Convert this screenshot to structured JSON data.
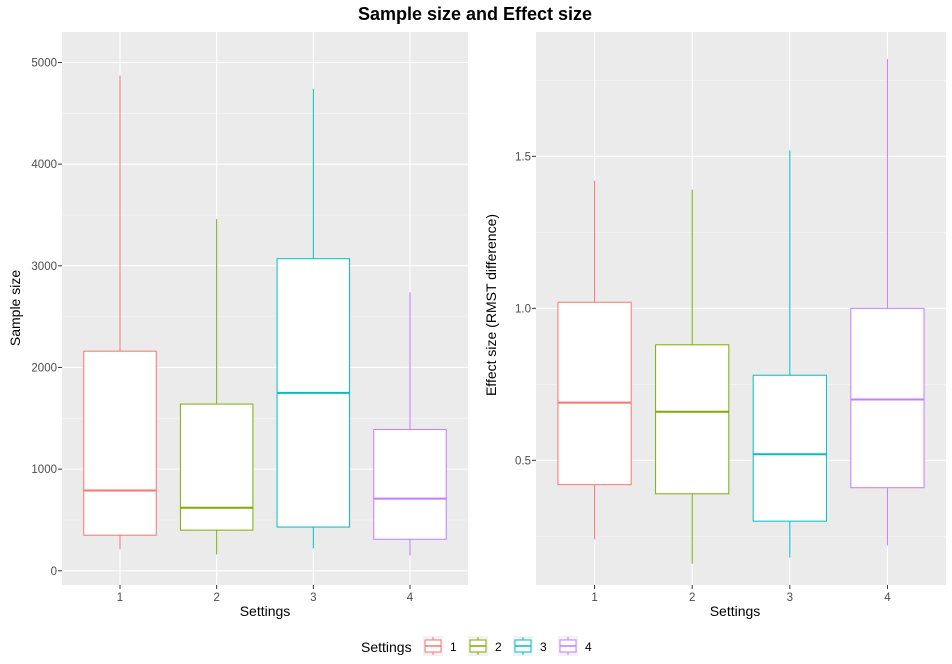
{
  "title": "Sample size and Effect size",
  "colors": {
    "panel_bg": "#ebebeb",
    "grid_major": "#ffffff",
    "grid_minor": "#f5f5f5",
    "series": [
      "#f8766d",
      "#7cae00",
      "#00bfc4",
      "#c77cff"
    ]
  },
  "chart_data": [
    {
      "type": "boxplot",
      "xlabel": "Settings",
      "ylabel": "Sample size",
      "categories": [
        "1",
        "2",
        "3",
        "4"
      ],
      "ylim": [
        -140,
        5300
      ],
      "yticks": [
        0,
        1000,
        2000,
        3000,
        4000,
        5000
      ],
      "ytick_labels": [
        "0",
        "1000",
        "2000",
        "3000",
        "4000",
        "5000"
      ],
      "boxes": [
        {
          "category": "1",
          "min": 210,
          "q1": 350,
          "median": 790,
          "q3": 2160,
          "max": 4870
        },
        {
          "category": "2",
          "min": 160,
          "q1": 400,
          "median": 620,
          "q3": 1640,
          "max": 3460
        },
        {
          "category": "3",
          "min": 220,
          "q1": 430,
          "median": 1750,
          "q3": 3070,
          "max": 4740
        },
        {
          "category": "4",
          "min": 150,
          "q1": 310,
          "median": 710,
          "q3": 1390,
          "max": 2740
        }
      ],
      "grid": true
    },
    {
      "type": "boxplot",
      "xlabel": "Settings",
      "ylabel": "Effect size (RMST difference)",
      "categories": [
        "1",
        "2",
        "3",
        "4"
      ],
      "ylim": [
        0.09,
        1.909
      ],
      "yticks": [
        0.5,
        1.0,
        1.5
      ],
      "ytick_labels": [
        "0.5",
        "1.0",
        "1.5"
      ],
      "boxes": [
        {
          "category": "1",
          "min": 0.24,
          "q1": 0.42,
          "median": 0.69,
          "q3": 1.02,
          "max": 1.42
        },
        {
          "category": "2",
          "min": 0.16,
          "q1": 0.39,
          "median": 0.66,
          "q3": 0.88,
          "max": 1.39
        },
        {
          "category": "3",
          "min": 0.18,
          "q1": 0.3,
          "median": 0.52,
          "q3": 0.78,
          "max": 1.52
        },
        {
          "category": "4",
          "min": 0.22,
          "q1": 0.41,
          "median": 0.7,
          "q3": 1.0,
          "max": 1.82
        }
      ],
      "grid": true
    }
  ],
  "legend": {
    "title": "Settings",
    "position": "bottom",
    "items": [
      "1",
      "2",
      "3",
      "4"
    ]
  }
}
